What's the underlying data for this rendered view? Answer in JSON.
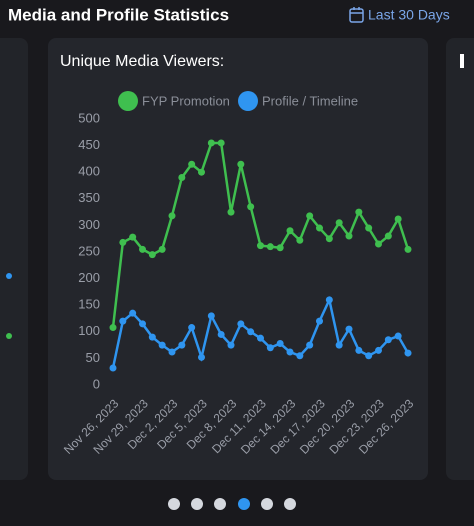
{
  "header": {
    "title": "Media and Profile Statistics",
    "range": "Last 30 Days"
  },
  "card": {
    "title": "Unique Media Viewers:"
  },
  "chart_data": {
    "type": "line",
    "categories": [
      "Nov 26, 2023",
      null,
      null,
      "Nov 29, 2023",
      null,
      null,
      "Dec 2, 2023",
      null,
      null,
      "Dec 5, 2023",
      null,
      null,
      "Dec 8, 2023",
      null,
      null,
      "Dec 11, 2023",
      null,
      null,
      "Dec 14, 2023",
      null,
      null,
      "Dec 17, 2023",
      null,
      null,
      "Dec 20, 2023",
      null,
      null,
      "Dec 23, 2023",
      null,
      null,
      "Dec 26, 2023"
    ],
    "series": [
      {
        "name": "FYP Promotion",
        "color": "#3fbf4f",
        "values": [
          108,
          268,
          278,
          255,
          245,
          255,
          318,
          390,
          415,
          400,
          455,
          455,
          325,
          415,
          335,
          262,
          260,
          258,
          290,
          272,
          318,
          295,
          275,
          305,
          280,
          325,
          295,
          265,
          280,
          312,
          255
        ]
      },
      {
        "name": "Profile / Timeline",
        "color": "#2f95f0",
        "values": [
          32,
          120,
          135,
          115,
          90,
          75,
          62,
          75,
          108,
          52,
          130,
          95,
          75,
          115,
          100,
          88,
          70,
          78,
          62,
          55,
          75,
          120,
          160,
          75,
          105,
          65,
          55,
          65,
          85,
          92,
          60
        ]
      }
    ],
    "ylim": [
      0,
      500
    ],
    "yticks": [
      0,
      50,
      100,
      150,
      200,
      250,
      300,
      350,
      400,
      450,
      500
    ],
    "grid": false,
    "legend": "top"
  }
}
